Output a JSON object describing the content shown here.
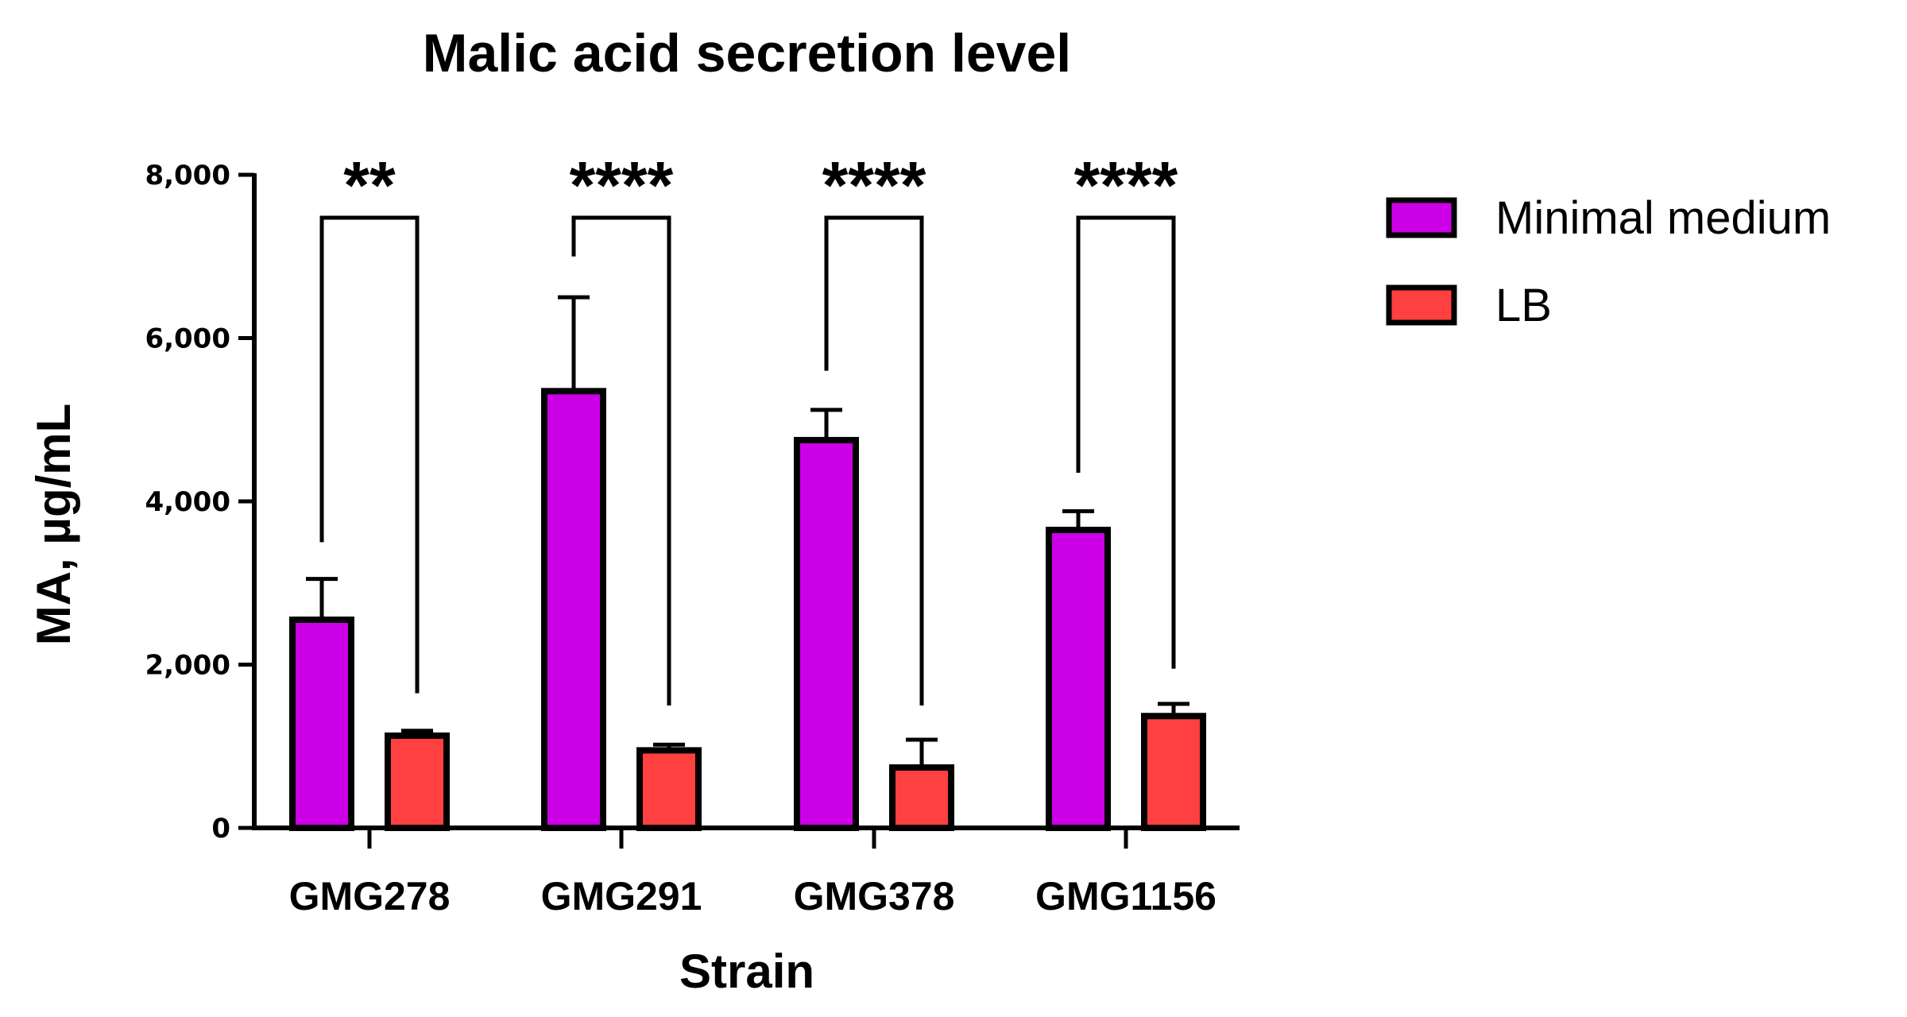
{
  "chart_data": {
    "type": "bar",
    "title": "Malic acid secretion level",
    "xlabel": "Strain",
    "ylabel": "MA, µg/mL",
    "ylim": [
      0,
      8000
    ],
    "yticks": [
      {
        "value": 0,
        "label": "0"
      },
      {
        "value": 2000,
        "label": "2,000"
      },
      {
        "value": 4000,
        "label": "4,000"
      },
      {
        "value": 6000,
        "label": "6,000"
      },
      {
        "value": 8000,
        "label": "8,000"
      }
    ],
    "categories": [
      "GMG278",
      "GMG291",
      "GMG378",
      "GMG1156"
    ],
    "series": [
      {
        "name": "Minimal medium",
        "color": "#cc00e6",
        "values": [
          2550,
          5350,
          4750,
          3650
        ],
        "error": [
          500,
          1150,
          370,
          230
        ]
      },
      {
        "name": "LB",
        "color": "#ff4040",
        "values": [
          1130,
          950,
          740,
          1370
        ],
        "error": [
          60,
          70,
          340,
          150
        ]
      }
    ],
    "significance": [
      {
        "label": "**",
        "left_top": 3500,
        "right_top": 1650
      },
      {
        "label": "****",
        "left_top": 7000,
        "right_top": 1500
      },
      {
        "label": "****",
        "left_top": 5600,
        "right_top": 1500
      },
      {
        "label": "****",
        "left_top": 4350,
        "right_top": 1950
      }
    ],
    "grid": false,
    "legend_position": "top-right"
  }
}
